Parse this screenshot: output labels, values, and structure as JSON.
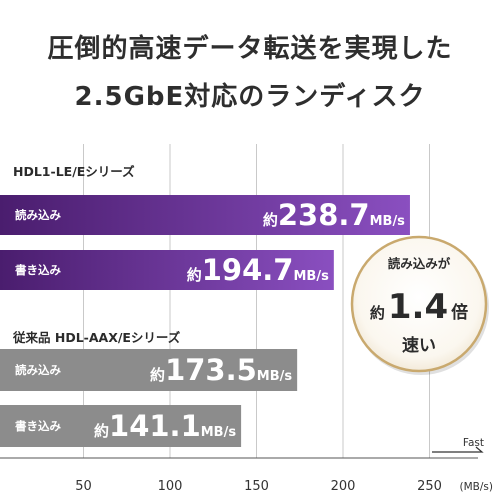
{
  "headline": {
    "line1": "圧倒的高速データ転送を実現した",
    "line2": "2.5GbE対応のランディスク"
  },
  "chart_data": {
    "type": "bar",
    "orientation": "horizontal",
    "unit": "(MB/s)",
    "x_ticks": [
      50,
      100,
      150,
      200,
      250
    ],
    "xlim": [
      0,
      260
    ],
    "grid": true,
    "direction_label": "Fast",
    "groups": [
      {
        "name": "HDL1-LE/Eシリーズ",
        "color": "#4a1d6e",
        "color_end": "#8a4fc0",
        "bars": [
          {
            "label": "読み込み",
            "prefix": "約",
            "value": 238.7,
            "value_text": "238.7",
            "unit": "MB/s"
          },
          {
            "label": "書き込み",
            "prefix": "約",
            "value": 194.7,
            "value_text": "194.7",
            "unit": "MB/s"
          }
        ]
      },
      {
        "name": "従来品 HDL-AAX/Eシリーズ",
        "color": "#8c8c8c",
        "color_end": "#8c8c8c",
        "bars": [
          {
            "label": "読み込み",
            "prefix": "約",
            "value": 173.5,
            "value_text": "173.5",
            "unit": "MB/s"
          },
          {
            "label": "書き込み",
            "prefix": "約",
            "value": 141.1,
            "value_text": "141.1",
            "unit": "MB/s"
          }
        ]
      }
    ]
  },
  "badge": {
    "top": "読み込みが",
    "prefix": "約",
    "multiplier": "1.4",
    "suffix": "倍",
    "bottom": "速い",
    "ring_color": "#c9a96e"
  }
}
